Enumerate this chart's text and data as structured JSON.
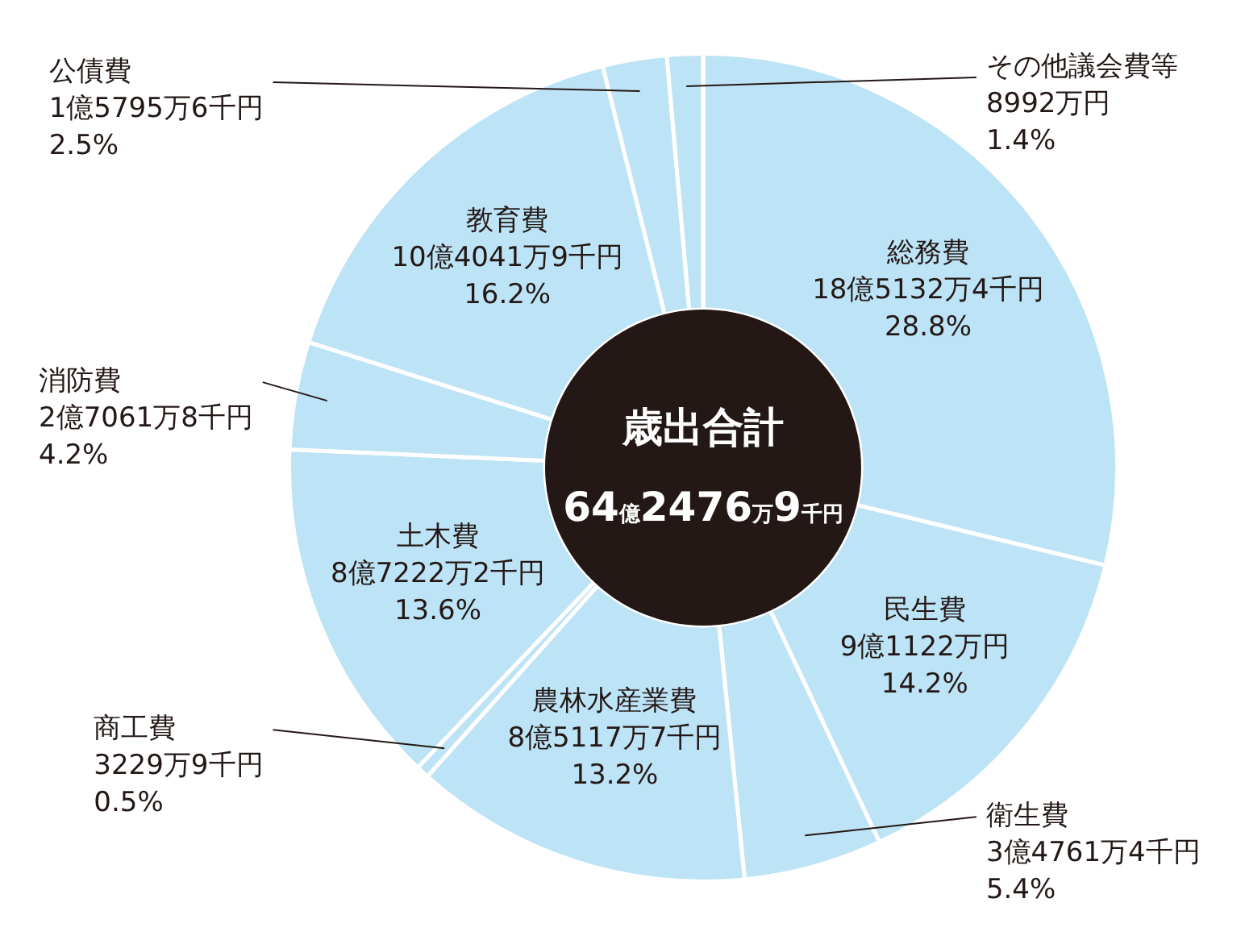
{
  "chart_data": {
    "type": "donut",
    "categories": [
      "総務費",
      "民生費",
      "衛生費",
      "農林水産業費",
      "商工費",
      "土木費",
      "消防費",
      "教育費",
      "公債費",
      "その他議会費等"
    ],
    "values": [
      28.8,
      14.2,
      5.4,
      13.2,
      0.5,
      13.6,
      4.2,
      16.2,
      2.5,
      1.4
    ],
    "colors": [
      "#bde3f6",
      "#bde3f6",
      "#bde3f6",
      "#bde3f6",
      "#bde3f6",
      "#bde3f6",
      "#bde3f6",
      "#bde3f6",
      "#bde3f6",
      "#bde3f6"
    ],
    "value_labels": [
      "18億5132万4千円\n28.8%",
      "9億1122万円\n14.2%",
      "3億4761万4千円\n5.4%",
      "8億5117万7千円\n13.2%",
      "3229万9千円\n0.5%",
      "8億7222万2千円\n13.6%",
      "2億7061万8千円\n4.2%",
      "10億4041万9千円\n16.2%",
      "1億5795万6千円\n2.5%",
      "8992万円\n1.4%"
    ],
    "annotations": [
      "歳出合計",
      "64億2476万9千円"
    ]
  }
}
